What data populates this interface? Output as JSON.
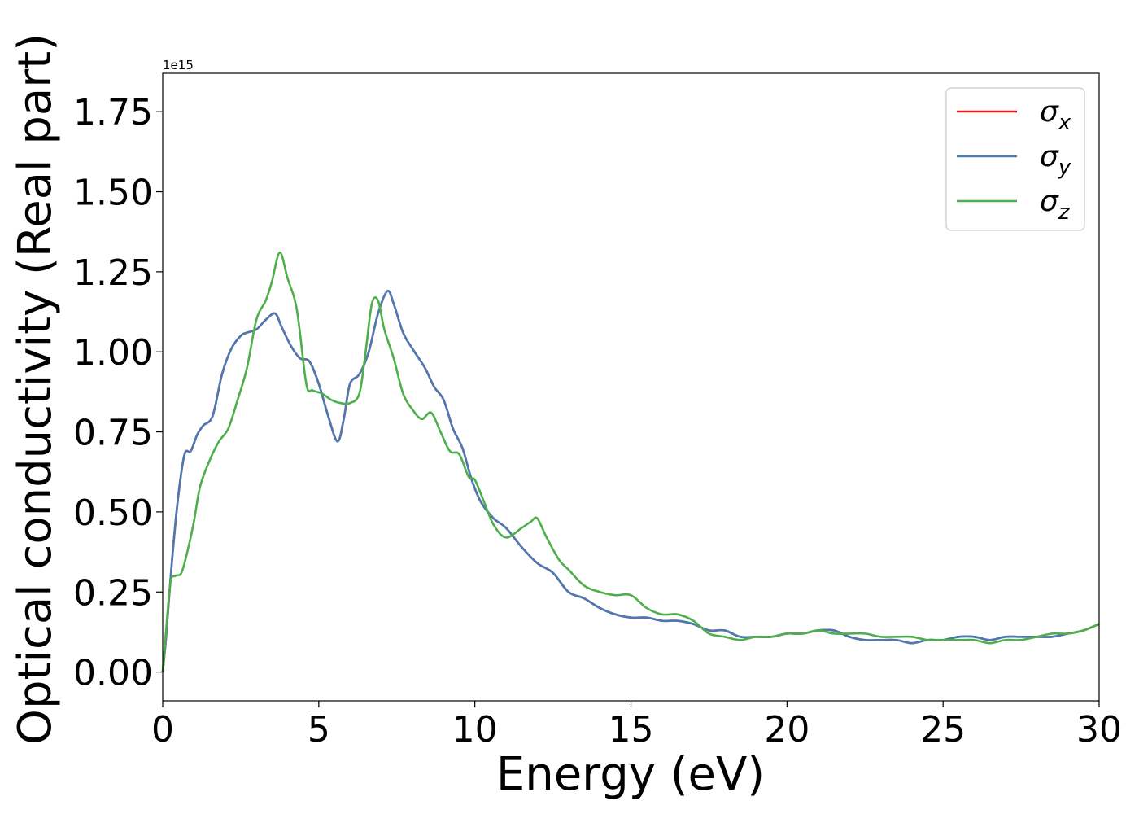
{
  "chart_data": {
    "type": "line",
    "xlabel": "Energy (eV)",
    "ylabel": "Optical conductivity (Real part)",
    "y_offset_label": "1e15",
    "xlim": [
      0,
      30
    ],
    "ylim": [
      -0.09,
      1.87
    ],
    "x_ticks": [
      0,
      5,
      10,
      15,
      20,
      25,
      30
    ],
    "x_tick_labels": [
      "0",
      "5",
      "10",
      "15",
      "20",
      "25",
      "30"
    ],
    "y_ticks": [
      0.0,
      0.25,
      0.5,
      0.75,
      1.0,
      1.25,
      1.5,
      1.75
    ],
    "y_tick_labels": [
      "0.00",
      "0.25",
      "0.50",
      "0.75",
      "1.00",
      "1.25",
      "1.50",
      "1.75"
    ],
    "grid": false,
    "legend_position": "top-right",
    "series": [
      {
        "name": "σx",
        "label_base": "σ",
        "label_sub": "x",
        "color": "#e41a1c",
        "x": [
          0,
          0.1,
          0.3,
          0.5,
          0.7,
          0.9,
          1.1,
          1.3,
          1.6,
          1.9,
          2.2,
          2.5,
          2.7,
          3.0,
          3.3,
          3.6,
          3.8,
          4.1,
          4.4,
          4.7,
          5.0,
          5.3,
          5.6,
          5.8,
          6.0,
          6.3,
          6.6,
          6.9,
          7.2,
          7.4,
          7.7,
          8.0,
          8.4,
          8.7,
          9.0,
          9.3,
          9.6,
          9.9,
          10.2,
          10.6,
          11.0,
          11.5,
          12.0,
          12.5,
          13.0,
          13.5,
          14.0,
          14.5,
          15.0,
          15.5,
          16.0,
          16.5,
          17.0,
          17.5,
          18.0,
          18.5,
          19.0,
          19.5,
          20.0,
          20.5,
          21.0,
          21.5,
          22.0,
          22.5,
          23.0,
          23.5,
          24.0,
          24.5,
          25.0,
          25.5,
          26.0,
          26.5,
          27.0,
          27.5,
          28.0,
          28.5,
          29.0,
          29.5,
          30.0
        ],
        "y": [
          0.0,
          0.1,
          0.35,
          0.55,
          0.68,
          0.69,
          0.74,
          0.77,
          0.8,
          0.93,
          1.01,
          1.05,
          1.06,
          1.07,
          1.1,
          1.12,
          1.08,
          1.02,
          0.98,
          0.97,
          0.9,
          0.8,
          0.72,
          0.79,
          0.9,
          0.93,
          1.0,
          1.12,
          1.19,
          1.15,
          1.06,
          1.01,
          0.95,
          0.89,
          0.85,
          0.76,
          0.7,
          0.6,
          0.53,
          0.48,
          0.45,
          0.39,
          0.34,
          0.31,
          0.25,
          0.23,
          0.2,
          0.18,
          0.17,
          0.17,
          0.16,
          0.16,
          0.15,
          0.13,
          0.13,
          0.11,
          0.11,
          0.11,
          0.12,
          0.12,
          0.13,
          0.13,
          0.11,
          0.1,
          0.1,
          0.1,
          0.09,
          0.1,
          0.1,
          0.11,
          0.11,
          0.1,
          0.11,
          0.11,
          0.11,
          0.11,
          0.12,
          0.13,
          0.15
        ]
      },
      {
        "name": "σy",
        "label_base": "σ",
        "label_sub": "y",
        "color": "#4a7ab4",
        "x": [
          0,
          0.1,
          0.3,
          0.5,
          0.7,
          0.9,
          1.1,
          1.3,
          1.6,
          1.9,
          2.2,
          2.5,
          2.7,
          3.0,
          3.3,
          3.6,
          3.8,
          4.1,
          4.4,
          4.7,
          5.0,
          5.3,
          5.6,
          5.8,
          6.0,
          6.3,
          6.6,
          6.9,
          7.2,
          7.4,
          7.7,
          8.0,
          8.4,
          8.7,
          9.0,
          9.3,
          9.6,
          9.9,
          10.2,
          10.6,
          11.0,
          11.5,
          12.0,
          12.5,
          13.0,
          13.5,
          14.0,
          14.5,
          15.0,
          15.5,
          16.0,
          16.5,
          17.0,
          17.5,
          18.0,
          18.5,
          19.0,
          19.5,
          20.0,
          20.5,
          21.0,
          21.5,
          22.0,
          22.5,
          23.0,
          23.5,
          24.0,
          24.5,
          25.0,
          25.5,
          26.0,
          26.5,
          27.0,
          27.5,
          28.0,
          28.5,
          29.0,
          29.5,
          30.0
        ],
        "y": [
          0.0,
          0.1,
          0.35,
          0.55,
          0.68,
          0.69,
          0.74,
          0.77,
          0.8,
          0.93,
          1.01,
          1.05,
          1.06,
          1.07,
          1.1,
          1.12,
          1.08,
          1.02,
          0.98,
          0.97,
          0.9,
          0.8,
          0.72,
          0.79,
          0.9,
          0.93,
          1.0,
          1.12,
          1.19,
          1.15,
          1.06,
          1.01,
          0.95,
          0.89,
          0.85,
          0.76,
          0.7,
          0.6,
          0.53,
          0.48,
          0.45,
          0.39,
          0.34,
          0.31,
          0.25,
          0.23,
          0.2,
          0.18,
          0.17,
          0.17,
          0.16,
          0.16,
          0.15,
          0.13,
          0.13,
          0.11,
          0.11,
          0.11,
          0.12,
          0.12,
          0.13,
          0.13,
          0.11,
          0.1,
          0.1,
          0.1,
          0.09,
          0.1,
          0.1,
          0.11,
          0.11,
          0.1,
          0.11,
          0.11,
          0.11,
          0.11,
          0.12,
          0.13,
          0.15
        ]
      },
      {
        "name": "σz",
        "label_base": "σ",
        "label_sub": "z",
        "color": "#4daf4a",
        "x": [
          0,
          0.1,
          0.25,
          0.4,
          0.6,
          0.8,
          1.0,
          1.2,
          1.5,
          1.8,
          2.1,
          2.4,
          2.7,
          3.0,
          3.3,
          3.5,
          3.75,
          4.0,
          4.3,
          4.6,
          4.8,
          5.1,
          5.4,
          5.7,
          6.0,
          6.3,
          6.5,
          6.7,
          6.9,
          7.1,
          7.4,
          7.7,
          8.0,
          8.3,
          8.6,
          8.9,
          9.2,
          9.5,
          9.8,
          10.0,
          10.3,
          10.6,
          11.0,
          11.5,
          11.8,
          12.0,
          12.3,
          12.7,
          13.0,
          13.5,
          14.0,
          14.5,
          15.0,
          15.5,
          16.0,
          16.5,
          17.0,
          17.5,
          18.0,
          18.5,
          19.0,
          19.5,
          20.0,
          20.5,
          21.0,
          21.5,
          22.0,
          22.5,
          23.0,
          23.5,
          24.0,
          24.5,
          25.0,
          25.5,
          26.0,
          26.5,
          27.0,
          27.5,
          28.0,
          28.5,
          29.0,
          29.5,
          30.0
        ],
        "y": [
          0.0,
          0.12,
          0.28,
          0.3,
          0.31,
          0.38,
          0.47,
          0.58,
          0.66,
          0.72,
          0.76,
          0.85,
          0.95,
          1.1,
          1.16,
          1.22,
          1.31,
          1.23,
          1.13,
          0.9,
          0.88,
          0.87,
          0.85,
          0.84,
          0.84,
          0.87,
          1.0,
          1.15,
          1.16,
          1.07,
          0.98,
          0.87,
          0.82,
          0.79,
          0.81,
          0.75,
          0.69,
          0.68,
          0.61,
          0.6,
          0.53,
          0.46,
          0.42,
          0.45,
          0.47,
          0.48,
          0.42,
          0.35,
          0.32,
          0.27,
          0.25,
          0.24,
          0.24,
          0.2,
          0.18,
          0.18,
          0.16,
          0.12,
          0.11,
          0.1,
          0.11,
          0.11,
          0.12,
          0.12,
          0.13,
          0.12,
          0.12,
          0.12,
          0.11,
          0.11,
          0.11,
          0.1,
          0.1,
          0.1,
          0.1,
          0.09,
          0.1,
          0.1,
          0.11,
          0.12,
          0.12,
          0.13,
          0.15
        ]
      }
    ]
  }
}
